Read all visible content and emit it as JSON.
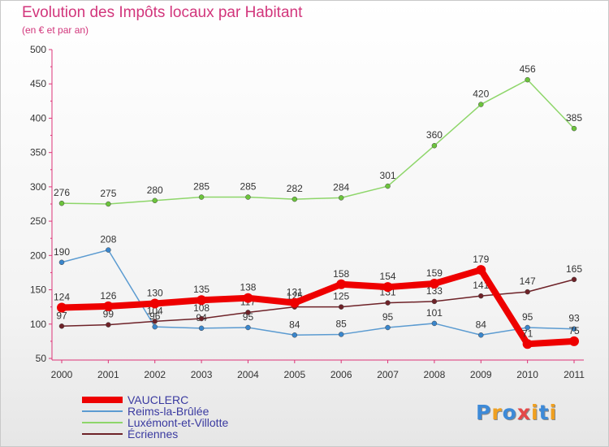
{
  "header": {
    "title": "Evolution des Impôts locaux par Habitant",
    "subtitle": "(en € et par an)"
  },
  "logo": {
    "letters": [
      "P",
      "r",
      "o",
      "x",
      "i",
      "t",
      "i"
    ],
    "colors": [
      "#3d8ad8",
      "#f0a020",
      "#3d8ad8",
      "#e44848",
      "#f0a020",
      "#3d8ad8",
      "#f0a020"
    ]
  },
  "chart_data": {
    "type": "line",
    "title": "Evolution des Impôts locaux par Habitant",
    "subtitle": "(en € et par an)",
    "xlabel": "",
    "ylabel": "",
    "ylim": [
      50,
      500
    ],
    "yticks": [
      50,
      100,
      150,
      200,
      250,
      300,
      350,
      400,
      450,
      500
    ],
    "grid": false,
    "legend_position": "bottom-left",
    "x": [
      "2000",
      "2001",
      "2002",
      "2003",
      "2004",
      "2005",
      "2006",
      "2007",
      "2008",
      "2009",
      "2010",
      "2011"
    ],
    "series": [
      {
        "name": "Luxémont-et-Villotte",
        "color": "#8ed66a",
        "point_color": "#6cc43c",
        "width": 1.5,
        "marker": 3,
        "values": [
          276,
          275,
          280,
          285,
          285,
          282,
          284,
          301,
          360,
          420,
          456,
          385
        ]
      },
      {
        "name": "Reims-la-Brûlée",
        "color": "#5b9bd1",
        "point_color": "#3a86cc",
        "width": 1.5,
        "marker": 3,
        "values": [
          190,
          208,
          96,
          94,
          95,
          84,
          85,
          95,
          101,
          84,
          95,
          93
        ]
      },
      {
        "name": "Écriennes",
        "color": "#6e2228",
        "point_color": "#6e2228",
        "width": 1.5,
        "marker": 3,
        "values": [
          97,
          99,
          104,
          108,
          117,
          125,
          125,
          131,
          133,
          141,
          147,
          165
        ]
      },
      {
        "name": "VAUCLERC",
        "color": "#ee0000",
        "point_color": "#ee0000",
        "width": 8,
        "marker": 6,
        "values": [
          124,
          126,
          130,
          135,
          138,
          131,
          158,
          154,
          159,
          179,
          71,
          75
        ]
      }
    ],
    "legend_order": [
      "VAUCLERC",
      "Reims-la-Brûlée",
      "Luxémont-et-Villotte",
      "Écriennes"
    ]
  }
}
